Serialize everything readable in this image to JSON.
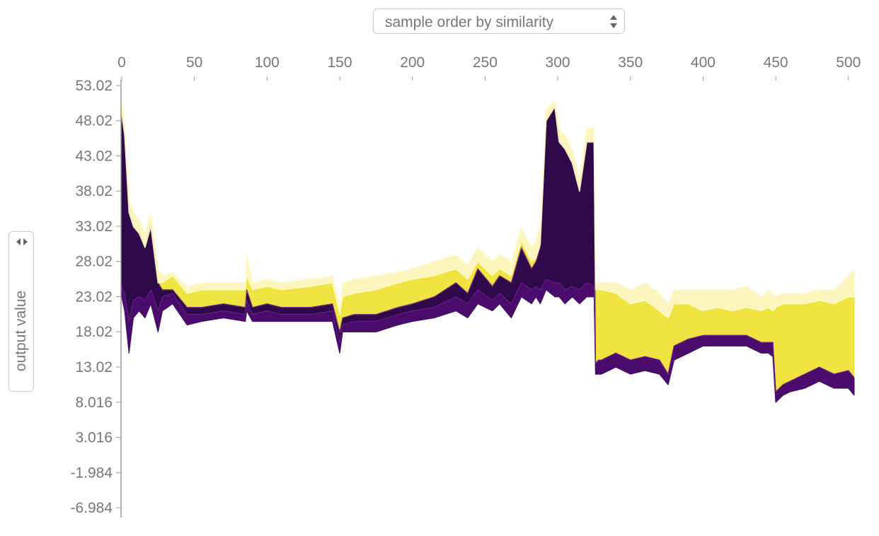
{
  "controls": {
    "x_order_select": "sample order by similarity",
    "y_value_select": "output value"
  },
  "colors": {
    "dark_purple": "#2e0a4b",
    "purple": "#4a0c6b",
    "mid_purple": "#6a1d8a",
    "yellow": "#f0e442",
    "pale_yellow": "#fcf5bd",
    "axis": "#999999"
  },
  "chart_data": {
    "type": "area",
    "title": "",
    "xlabel": "",
    "ylabel": "output value",
    "xlim": [
      0,
      504
    ],
    "ylim": [
      -6.984,
      53.02
    ],
    "x_ticks": [
      0,
      50,
      100,
      150,
      200,
      250,
      300,
      350,
      400,
      450,
      500
    ],
    "x_tick_labels": [
      "0",
      "50",
      "100",
      "150",
      "200",
      "250",
      "300",
      "350",
      "400",
      "450",
      "500"
    ],
    "y_ticks": [
      53.02,
      48.02,
      43.02,
      38.02,
      33.02,
      28.02,
      23.02,
      18.02,
      13.02,
      8.016,
      3.016,
      -1.984,
      -6.984
    ],
    "y_tick_labels": [
      "53.02",
      "48.02",
      "43.02",
      "38.02",
      "33.02",
      "28.02",
      "23.02",
      "18.02",
      "13.02",
      "8.016",
      "3.016",
      "-1.984",
      "-6.984"
    ],
    "grid": false,
    "x": [
      0,
      2,
      5,
      8,
      12,
      16,
      20,
      25,
      28,
      35,
      45,
      55,
      70,
      85,
      86,
      90,
      100,
      110,
      130,
      145,
      150,
      152,
      160,
      175,
      190,
      200,
      215,
      230,
      238,
      245,
      255,
      260,
      268,
      275,
      282,
      285,
      288,
      292,
      298,
      301,
      305,
      310,
      315,
      320,
      325,
      326,
      328,
      330,
      340,
      350,
      360,
      370,
      376,
      380,
      390,
      400,
      410,
      420,
      430,
      440,
      445,
      448,
      450,
      455,
      460,
      470,
      480,
      490,
      500,
      504
    ],
    "series": [
      {
        "values": [
          23,
          21,
          15,
          20,
          21,
          20,
          22,
          18,
          21,
          22,
          19,
          19.5,
          20,
          19.5,
          21,
          19.5,
          19.5,
          19.5,
          19.5,
          19.5,
          15,
          18,
          18,
          18,
          19,
          19.5,
          20,
          21,
          20,
          22,
          21,
          22,
          20,
          23,
          22,
          23,
          22,
          24,
          23,
          23,
          22,
          23,
          22,
          23,
          23,
          12,
          12,
          12,
          13,
          12,
          12.5,
          12,
          10.5,
          14,
          15,
          16,
          16,
          16,
          16,
          15,
          15,
          14.5,
          8,
          9,
          9.5,
          10,
          11,
          10,
          10,
          9
        ]
      },
      {
        "values": [
          24.5,
          23.5,
          19.5,
          22.5,
          23,
          22.5,
          24,
          21,
          23,
          23.5,
          20.5,
          20.5,
          21,
          20.5,
          22.5,
          20.5,
          21,
          20.5,
          20.5,
          21,
          16.5,
          19,
          19.5,
          19.5,
          20.5,
          21,
          21.5,
          23,
          22,
          24,
          22.5,
          23.5,
          22,
          25,
          24,
          24.5,
          24,
          25.5,
          25,
          25,
          24,
          24.5,
          24,
          25,
          24.5,
          13.5,
          14,
          14,
          15,
          14,
          14.5,
          14,
          12,
          16,
          17,
          17.5,
          17.5,
          17.5,
          17.5,
          16.5,
          16.5,
          16.5,
          9.5,
          10.5,
          11,
          12,
          13,
          12,
          12.5,
          11.5
        ]
      },
      {
        "values": [
          49,
          46,
          35,
          33,
          32,
          30,
          33,
          25,
          24,
          24,
          21.5,
          21.5,
          22,
          21.5,
          24,
          21.5,
          22,
          21.5,
          21.5,
          22,
          18,
          20,
          20.5,
          20.5,
          21.5,
          22,
          23,
          25,
          23.5,
          27,
          24.5,
          26,
          25,
          30,
          27,
          28,
          30,
          48,
          50,
          45,
          44,
          42,
          38,
          45,
          45,
          13.5,
          14,
          14,
          15,
          14,
          14.5,
          14,
          12,
          16,
          17,
          17.5,
          17.5,
          17.5,
          17.5,
          16.5,
          16.5,
          16.5,
          9.5,
          10.5,
          11,
          12,
          13,
          12,
          12.5,
          11.5
        ]
      },
      {
        "values": [
          49,
          46,
          35,
          33,
          32,
          30,
          33,
          25,
          25,
          26,
          23.5,
          24,
          24,
          24,
          26,
          24,
          24.5,
          24,
          24.5,
          25,
          20.5,
          23,
          23.5,
          24,
          25,
          25.5,
          26,
          27,
          25.5,
          28,
          26,
          27,
          26,
          31,
          28,
          28.5,
          30.5,
          48,
          50,
          45,
          44,
          42,
          38,
          45,
          45,
          24,
          24,
          24,
          23.5,
          22,
          22.5,
          21,
          20,
          22,
          22,
          21,
          21.5,
          21,
          21.5,
          21,
          21.5,
          21,
          21.5,
          22,
          22,
          22,
          22.5,
          22,
          23,
          23
        ]
      },
      {
        "values": [
          51,
          48,
          37,
          35,
          34,
          32,
          35,
          27,
          26,
          26.5,
          24.5,
          25,
          25,
          25,
          29,
          25,
          25.5,
          25,
          25.5,
          26,
          22,
          25,
          25.5,
          26,
          26.5,
          27,
          28,
          29,
          27.5,
          30,
          28,
          29,
          28,
          33,
          30,
          31,
          33,
          49.5,
          51,
          47,
          46,
          44,
          40,
          47,
          47,
          25,
          25,
          25,
          25,
          24,
          25,
          23.5,
          22,
          24,
          24,
          24,
          24,
          24,
          24.5,
          23,
          24,
          23.5,
          23,
          23.5,
          23.5,
          23.5,
          24,
          24,
          26,
          27
        ]
      }
    ]
  }
}
